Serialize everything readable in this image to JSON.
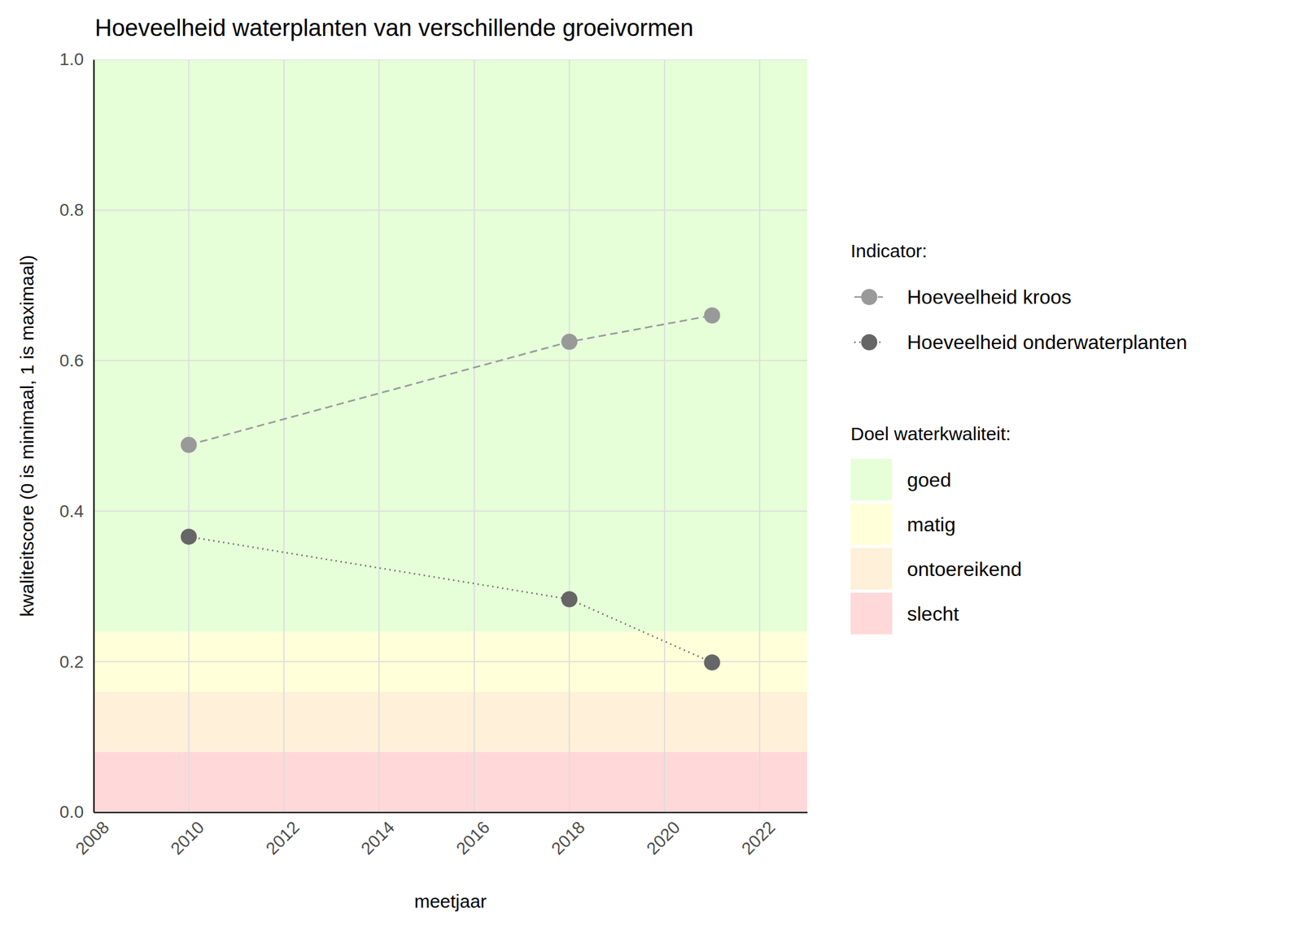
{
  "chart_data": {
    "type": "line",
    "title": "Hoeveelheid waterplanten van verschillende groeivormen",
    "x_label": "meetjaar",
    "y_label": "kwaliteitscore (0 is minimaal, 1 is maximaal)",
    "x": [
      2010,
      2018,
      2021
    ],
    "series": [
      {
        "name": "Hoeveelheid kroos",
        "color": "#999999",
        "marker": "circle",
        "line_style": "dashed",
        "values": [
          0.488,
          0.625,
          0.66
        ]
      },
      {
        "name": "Hoeveelheid onderwaterplanten",
        "color": "#666666",
        "marker": "circle",
        "line_style": "dotted",
        "values": [
          0.366,
          0.283,
          0.199
        ]
      }
    ],
    "xlim": [
      2008,
      2023
    ],
    "xticks": [
      2008,
      2010,
      2012,
      2014,
      2016,
      2018,
      2020,
      2022
    ],
    "ylim": [
      0,
      1
    ],
    "yticks": [
      {
        "value": 0,
        "label": "0.0"
      },
      0.2,
      0.4,
      0.6,
      0.8,
      {
        "value": 1,
        "label": "1.0"
      }
    ],
    "grid": true,
    "legend": "right",
    "legend_title": "Indicator:",
    "bands": {
      "title": "Doel waterkwaliteit:",
      "items": [
        {
          "name": "goed",
          "color": "#e6ffd9",
          "range": [
            0.24,
            1
          ]
        },
        {
          "name": "matig",
          "color": "#ffffd9",
          "range": [
            0.16,
            0.24
          ]
        },
        {
          "name": "ontoereikend",
          "color": "#fff0d9",
          "range": [
            0.08,
            0.16
          ]
        },
        {
          "name": "slecht",
          "color": "#ffd9d9",
          "range": [
            0,
            0.08
          ]
        }
      ]
    }
  }
}
